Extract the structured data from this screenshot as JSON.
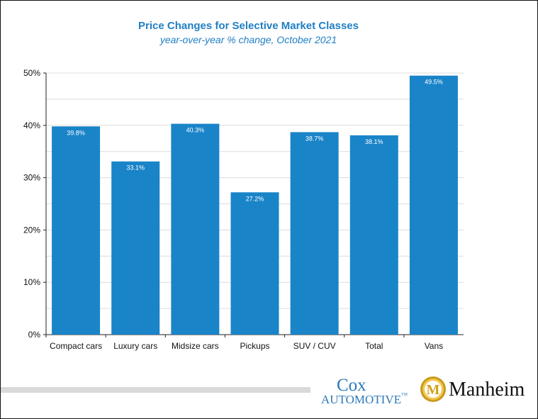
{
  "chart_data": {
    "type": "bar",
    "title": "Price Changes for Selective Market Classes",
    "subtitle": "year-over-year % change, October 2021",
    "categories": [
      "Compact cars",
      "Luxury cars",
      "Midsize cars",
      "Pickups",
      "SUV / CUV",
      "Total",
      "Vans"
    ],
    "values": [
      39.8,
      33.1,
      40.3,
      27.2,
      38.7,
      38.1,
      49.5
    ],
    "value_labels": [
      "39.8%",
      "33.1%",
      "40.3%",
      "27.2%",
      "38.7%",
      "38.1%",
      "49.5%"
    ],
    "y_ticks": [
      "0%",
      "10%",
      "20%",
      "30%",
      "40%",
      "50%"
    ],
    "ylim": [
      0,
      50
    ],
    "xlabel": "",
    "ylabel": "",
    "grid": true,
    "bar_color": "#1a84c8",
    "label_color": "#ffffff"
  },
  "footer": {
    "cox_line1": "Cox",
    "cox_line2": "AUTOMOTIVE",
    "cox_tm": "TM",
    "manheim_name": "Manheim",
    "manheim_seal_letter": "M",
    "brand_color": "#2b78b8"
  }
}
